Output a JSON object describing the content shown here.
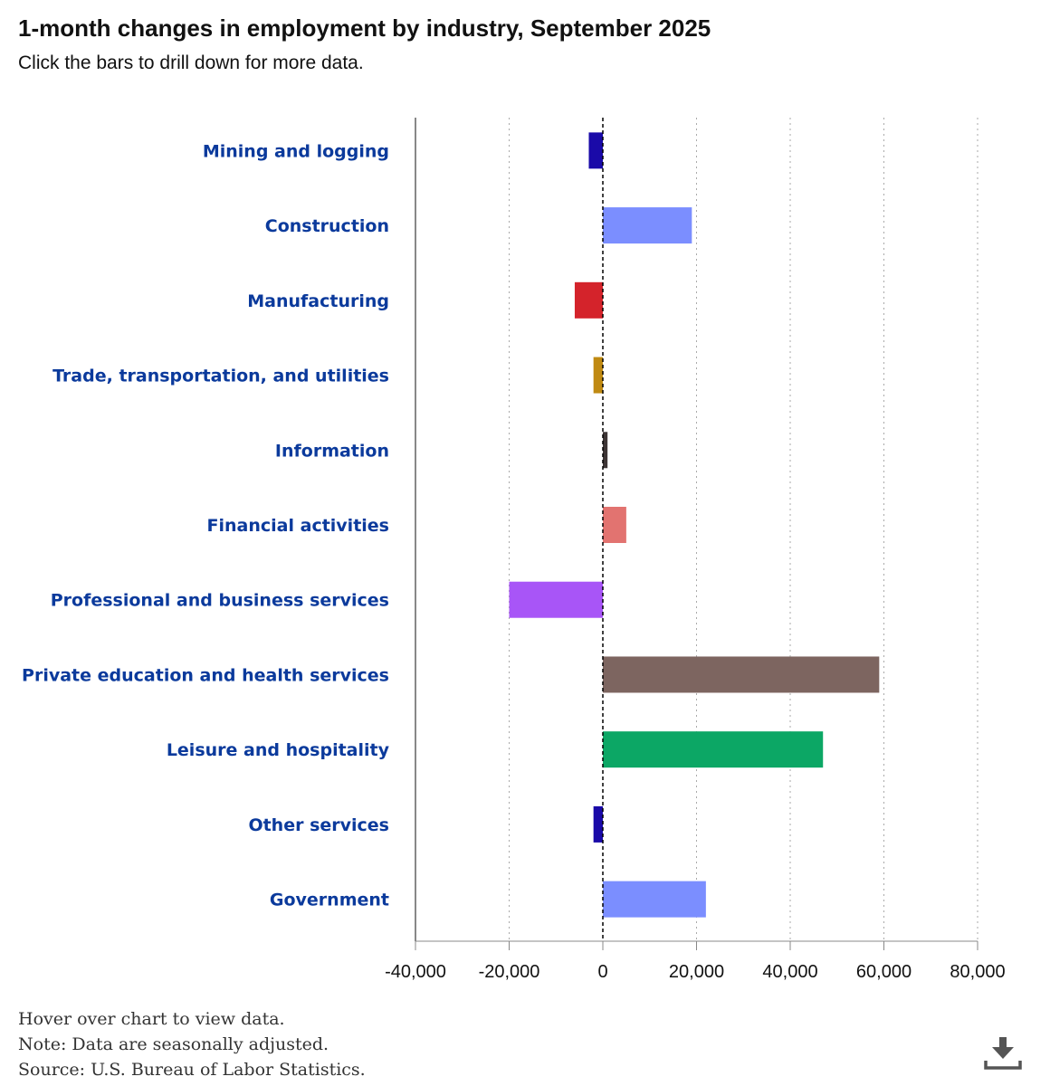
{
  "title": "1-month changes in employment by industry, September 2025",
  "subtitle": "Click the bars to drill down for more data.",
  "notes": [
    "Hover over chart to view data.",
    "Note: Data are seasonally adjusted.",
    "Source: U.S. Bureau of Labor Statistics."
  ],
  "download_icon": "download-icon",
  "chart_data": {
    "type": "bar",
    "orientation": "horizontal",
    "title": "1-month changes in employment by industry, September 2025",
    "xlabel": "",
    "ylabel": "",
    "xlim": [
      -40000,
      80000
    ],
    "xticks": [
      -40000,
      -20000,
      0,
      20000,
      40000,
      60000,
      80000
    ],
    "xtick_labels": [
      "-40,000",
      "-20,000",
      "0",
      "20,000",
      "40,000",
      "60,000",
      "80,000"
    ],
    "grid": "vertical dotted",
    "categories": [
      "Mining and logging",
      "Construction",
      "Manufacturing",
      "Trade, transportation, and utilities",
      "Information",
      "Financial activities",
      "Professional and business services",
      "Private education and health services",
      "Leisure and hospitality",
      "Other services",
      "Government"
    ],
    "values": [
      -3000,
      19000,
      -6000,
      -2000,
      1000,
      5000,
      -20000,
      59000,
      47000,
      -2000,
      22000
    ],
    "colors": [
      "#1a0aa8",
      "#7b8eff",
      "#d4232b",
      "#c08a12",
      "#3d3535",
      "#e27370",
      "#a855f7",
      "#7d6560",
      "#0ca765",
      "#1a0aa8",
      "#7b8eff"
    ]
  }
}
